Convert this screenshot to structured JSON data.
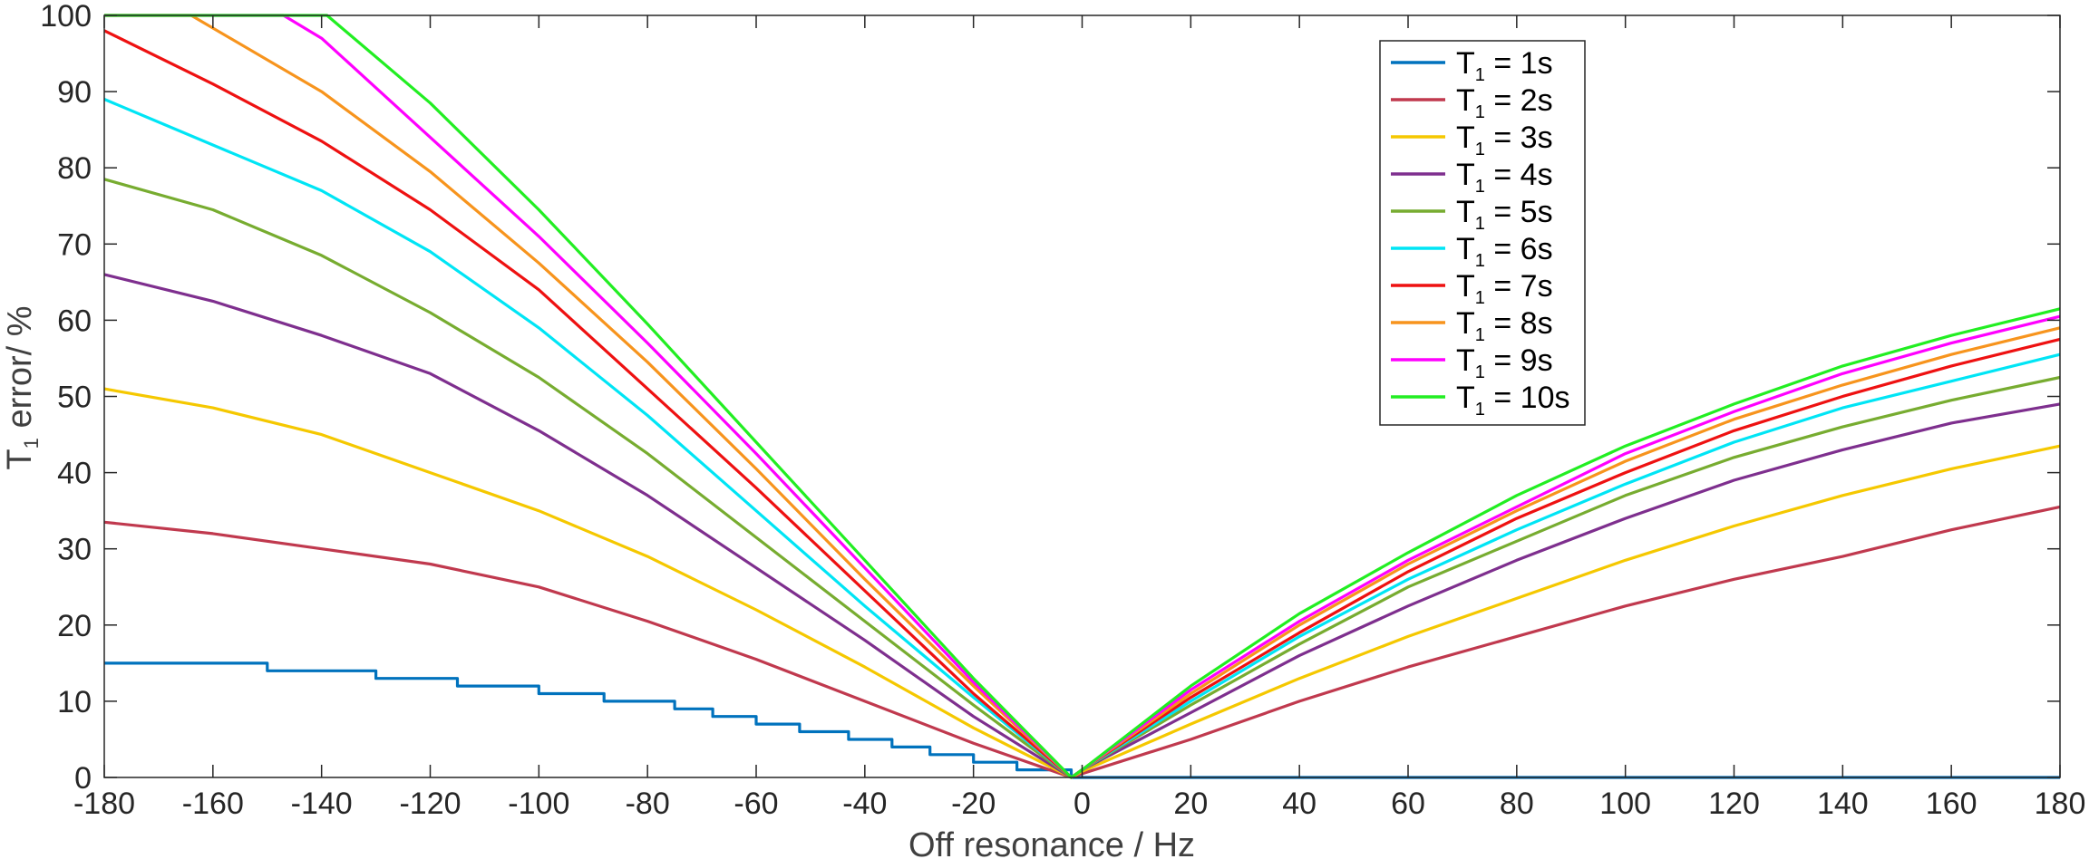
{
  "chart_data": {
    "type": "line",
    "title": "",
    "xlabel": "Off resonance / Hz",
    "ylabel_main": "T",
    "ylabel_sub": "1",
    "ylabel_rest": " error/ %",
    "xlim": [
      -180,
      180
    ],
    "ylim": [
      0,
      100
    ],
    "xticks": [
      -180,
      -160,
      -140,
      -120,
      -100,
      -80,
      -60,
      -40,
      -20,
      0,
      20,
      40,
      60,
      80,
      100,
      120,
      140,
      160,
      180
    ],
    "yticks": [
      0,
      10,
      20,
      30,
      40,
      50,
      60,
      70,
      80,
      90,
      100
    ],
    "grid": false,
    "legend_position": "top-right",
    "vertex_x": -2,
    "series": [
      {
        "name_main": "T",
        "name_sub": "1",
        "name_rest": " = 1s",
        "color": "#0072BD",
        "step": true,
        "x": [
          -180,
          -150,
          -130,
          -115,
          -100,
          -88,
          -75,
          -68,
          -60,
          -52,
          -43,
          -35,
          -28,
          -20,
          -12,
          -5,
          -2,
          180
        ],
        "y": [
          15,
          14,
          13,
          12,
          11,
          10,
          9,
          8,
          7,
          6,
          5,
          4,
          3,
          2,
          1,
          1,
          0,
          0
        ]
      },
      {
        "name_main": "T",
        "name_sub": "1",
        "name_rest": " = 2s",
        "color": "#C0394E",
        "step": false,
        "x": [
          -180,
          -160,
          -140,
          -120,
          -100,
          -80,
          -60,
          -40,
          -20,
          -2,
          0,
          20,
          40,
          60,
          80,
          100,
          120,
          140,
          160,
          180
        ],
        "y": [
          33.5,
          32,
          30,
          28,
          25,
          20.5,
          15.5,
          10,
          4.5,
          0,
          0.5,
          5,
          10,
          14.5,
          18.5,
          22.5,
          26,
          29,
          32.5,
          35.5
        ]
      },
      {
        "name_main": "T",
        "name_sub": "1",
        "name_rest": " = 3s",
        "color": "#F5C800",
        "step": false,
        "x": [
          -180,
          -160,
          -140,
          -120,
          -100,
          -80,
          -60,
          -40,
          -20,
          -2,
          0,
          20,
          40,
          60,
          80,
          100,
          120,
          140,
          160,
          180
        ],
        "y": [
          51,
          48.5,
          45,
          40,
          35,
          29,
          22,
          14.5,
          6.5,
          0,
          0.8,
          7,
          13,
          18.5,
          23.5,
          28.5,
          33,
          37,
          40.5,
          43.5
        ]
      },
      {
        "name_main": "T",
        "name_sub": "1",
        "name_rest": " = 4s",
        "color": "#7E2F8E",
        "step": false,
        "x": [
          -180,
          -160,
          -140,
          -120,
          -100,
          -80,
          -60,
          -40,
          -20,
          -2,
          0,
          20,
          40,
          60,
          80,
          100,
          120,
          140,
          160,
          180
        ],
        "y": [
          66,
          62.5,
          58,
          53,
          45.5,
          37,
          27.5,
          18,
          8,
          0,
          1,
          8.5,
          16,
          22.5,
          28.5,
          34,
          39,
          43,
          46.5,
          49
        ]
      },
      {
        "name_main": "T",
        "name_sub": "1",
        "name_rest": " = 5s",
        "color": "#77AC30",
        "step": false,
        "x": [
          -180,
          -160,
          -140,
          -120,
          -100,
          -80,
          -60,
          -40,
          -20,
          -2,
          0,
          20,
          40,
          60,
          80,
          100,
          120,
          140,
          160,
          180
        ],
        "y": [
          78.5,
          74.5,
          68.5,
          61,
          52.5,
          42.5,
          31.5,
          20.5,
          9.5,
          0,
          1,
          9.5,
          17.5,
          25,
          31,
          37,
          42,
          46,
          49.5,
          52.5
        ]
      },
      {
        "name_main": "T",
        "name_sub": "1",
        "name_rest": " = 6s",
        "color": "#00E5F5",
        "step": false,
        "x": [
          -180,
          -160,
          -140,
          -120,
          -100,
          -80,
          -60,
          -40,
          -20,
          -2,
          0,
          20,
          40,
          60,
          80,
          100,
          120,
          140,
          160,
          180
        ],
        "y": [
          89,
          83,
          77,
          69,
          59,
          47.5,
          35,
          22.5,
          10.5,
          0,
          1,
          10,
          18.5,
          26,
          32.5,
          38.5,
          44,
          48.5,
          52,
          55.5
        ]
      },
      {
        "name_main": "T",
        "name_sub": "1",
        "name_rest": " = 7s",
        "color": "#EE1111",
        "step": false,
        "x": [
          -180,
          -160,
          -140,
          -120,
          -100,
          -80,
          -60,
          -40,
          -20,
          -2,
          0,
          20,
          40,
          60,
          80,
          100,
          120,
          140,
          160,
          180
        ],
        "y": [
          98,
          91,
          83.5,
          74.5,
          64,
          51,
          38,
          24.5,
          11,
          0,
          1,
          10.5,
          19,
          27,
          34,
          40,
          45.5,
          50,
          54,
          57.5
        ]
      },
      {
        "name_main": "T",
        "name_sub": "1",
        "name_rest": " = 8s",
        "color": "#F7941D",
        "step": false,
        "x": [
          -180,
          -164,
          -140,
          -120,
          -100,
          -80,
          -60,
          -40,
          -20,
          -2,
          0,
          20,
          40,
          60,
          80,
          100,
          120,
          140,
          160,
          180
        ],
        "y": [
          100,
          100,
          90,
          79.5,
          67.5,
          54.5,
          40.5,
          26,
          12,
          0,
          1,
          11,
          20,
          28,
          35,
          41.5,
          47,
          51.5,
          55.5,
          59
        ]
      },
      {
        "name_main": "T",
        "name_sub": "1",
        "name_rest": " = 9s",
        "color": "#FF00FF",
        "step": false,
        "x": [
          -180,
          -147,
          -140,
          -120,
          -100,
          -80,
          -60,
          -40,
          -20,
          -2,
          0,
          20,
          40,
          60,
          80,
          100,
          120,
          140,
          160,
          180
        ],
        "y": [
          100,
          100,
          97,
          84,
          71,
          57,
          42.5,
          27.5,
          12.5,
          0,
          1,
          11.5,
          20.5,
          28.5,
          35.5,
          42.5,
          48,
          53,
          57,
          60.5
        ]
      },
      {
        "name_main": "T",
        "name_sub": "1",
        "name_rest": " = 10s",
        "color": "#22EE22",
        "step": false,
        "x": [
          -180,
          -139,
          -120,
          -100,
          -80,
          -60,
          -40,
          -20,
          -2,
          0,
          20,
          40,
          60,
          80,
          100,
          120,
          140,
          160,
          180
        ],
        "y": [
          100,
          100,
          88.5,
          74.5,
          59.5,
          44,
          28.5,
          13,
          0,
          1,
          12,
          21.5,
          29.5,
          37,
          43.5,
          49,
          54,
          58,
          61.5
        ]
      }
    ]
  }
}
